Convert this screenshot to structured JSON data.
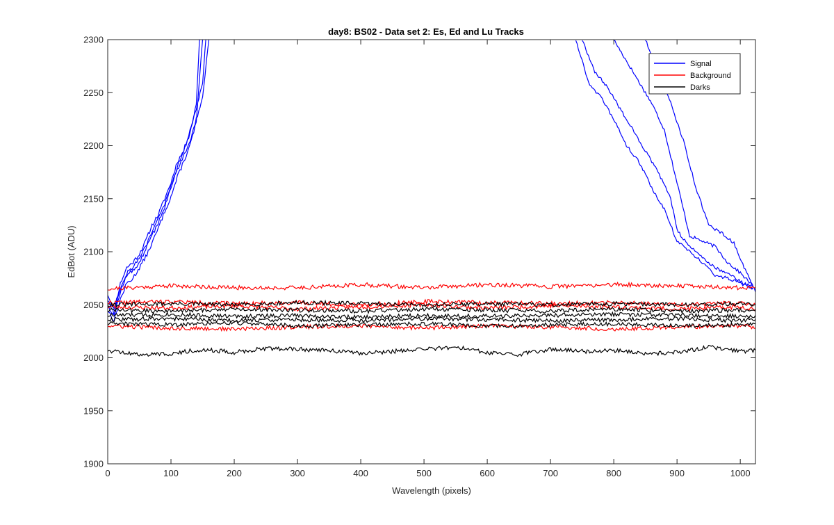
{
  "chart_data": {
    "type": "line",
    "title": "day8: BS02 - Data set 2: Es, Ed and Lu Tracks",
    "xlabel": "Wavelength (pixels)",
    "ylabel": "EdBot (ADU)",
    "xlim": [
      0,
      1024
    ],
    "ylim": [
      1900,
      2300
    ],
    "xticks": [
      0,
      100,
      200,
      300,
      400,
      500,
      600,
      700,
      800,
      900,
      1000
    ],
    "yticks": [
      1900,
      1950,
      2000,
      2050,
      2100,
      2150,
      2200,
      2250,
      2300
    ],
    "xtick_labels": [
      "0",
      "100",
      "200",
      "300",
      "400",
      "500",
      "600",
      "700",
      "800",
      "900",
      "1000"
    ],
    "ytick_labels": [
      "1900",
      "1950",
      "2000",
      "2050",
      "2100",
      "2150",
      "2200",
      "2250",
      "2300"
    ],
    "grid": false,
    "legend_position": "top-right",
    "legend": [
      {
        "name": "Signal",
        "color": "#0000ff"
      },
      {
        "name": "Background",
        "color": "#ff0000"
      },
      {
        "name": "Darks",
        "color": "#000000"
      }
    ],
    "series": [
      {
        "name": "Signal 1",
        "group": "Signal",
        "color": "#0000ff",
        "noise": 2,
        "seed": 11,
        "x": [
          0,
          10,
          20,
          30,
          40,
          50,
          60,
          70,
          80,
          90,
          100,
          110,
          120,
          130,
          140,
          150,
          155
        ],
        "y": [
          2060,
          2045,
          2070,
          2085,
          2090,
          2098,
          2110,
          2125,
          2135,
          2150,
          2165,
          2185,
          2195,
          2215,
          2235,
          2260,
          2300
        ]
      },
      {
        "name": "Signal 2",
        "group": "Signal",
        "color": "#0000ff",
        "noise": 2,
        "seed": 12,
        "x": [
          0,
          10,
          20,
          30,
          40,
          50,
          60,
          70,
          80,
          90,
          100,
          110,
          120,
          130,
          140,
          150,
          160
        ],
        "y": [
          2050,
          2040,
          2062,
          2078,
          2082,
          2090,
          2102,
          2115,
          2128,
          2142,
          2160,
          2178,
          2190,
          2205,
          2225,
          2245,
          2300
        ]
      },
      {
        "name": "Signal 3",
        "group": "Signal",
        "color": "#0000ff",
        "noise": 2,
        "seed": 13,
        "x": [
          0,
          10,
          20,
          30,
          40,
          50,
          60,
          70,
          80,
          90,
          100,
          110,
          120,
          130,
          140,
          150
        ],
        "y": [
          2045,
          2035,
          2055,
          2070,
          2075,
          2085,
          2095,
          2108,
          2122,
          2138,
          2152,
          2170,
          2185,
          2200,
          2222,
          2300
        ]
      },
      {
        "name": "Signal 4",
        "group": "Signal",
        "color": "#0000ff",
        "noise": 2,
        "seed": 14,
        "x": [
          0,
          10,
          20,
          30,
          40,
          50,
          60,
          70,
          80,
          90,
          100,
          110,
          120,
          130,
          140,
          145
        ],
        "y": [
          2055,
          2042,
          2066,
          2080,
          2086,
          2094,
          2105,
          2118,
          2132,
          2145,
          2162,
          2180,
          2195,
          2212,
          2240,
          2300
        ]
      },
      {
        "name": "Signal 5",
        "group": "Signal",
        "color": "#0000ff",
        "noise": 1.5,
        "seed": 15,
        "x": [
          740,
          760,
          780,
          800,
          820,
          840,
          860,
          880,
          900,
          920,
          940,
          960,
          980,
          1000,
          1020
        ],
        "y": [
          2300,
          2260,
          2245,
          2225,
          2200,
          2185,
          2160,
          2140,
          2110,
          2100,
          2090,
          2078,
          2075,
          2070,
          2065
        ]
      },
      {
        "name": "Signal 6",
        "group": "Signal",
        "color": "#0000ff",
        "noise": 1.5,
        "seed": 16,
        "x": [
          750,
          770,
          790,
          810,
          830,
          850,
          870,
          890,
          900,
          920,
          940,
          960,
          980,
          1000,
          1020
        ],
        "y": [
          2300,
          2270,
          2255,
          2235,
          2215,
          2195,
          2175,
          2150,
          2120,
          2105,
          2095,
          2085,
          2080,
          2072,
          2066
        ]
      },
      {
        "name": "Signal 7",
        "group": "Signal",
        "color": "#0000ff",
        "noise": 1.5,
        "seed": 17,
        "x": [
          800,
          820,
          840,
          860,
          880,
          900,
          920,
          940,
          960,
          980,
          1000,
          1020
        ],
        "y": [
          2300,
          2280,
          2260,
          2240,
          2215,
          2165,
          2115,
          2110,
          2105,
          2090,
          2080,
          2068
        ]
      },
      {
        "name": "Signal 8",
        "group": "Signal",
        "color": "#0000ff",
        "noise": 1.5,
        "seed": 18,
        "x": [
          850,
          870,
          890,
          910,
          930,
          950,
          970,
          990,
          1010,
          1024
        ],
        "y": [
          2300,
          2270,
          2240,
          2205,
          2160,
          2125,
          2118,
          2108,
          2080,
          2062
        ]
      },
      {
        "name": "Background 1",
        "group": "Background",
        "color": "#ff0000",
        "noise": 2,
        "seed": 21,
        "x": [
          0,
          100,
          200,
          300,
          400,
          500,
          600,
          700,
          800,
          900,
          1000,
          1024
        ],
        "y": [
          2065,
          2068,
          2066,
          2066,
          2069,
          2066,
          2069,
          2067,
          2069,
          2068,
          2066,
          2066
        ]
      },
      {
        "name": "Background 2",
        "group": "Background",
        "color": "#ff0000",
        "noise": 2,
        "seed": 22,
        "x": [
          0,
          100,
          200,
          300,
          400,
          500,
          600,
          700,
          800,
          900,
          1000,
          1024
        ],
        "y": [
          2052,
          2053,
          2051,
          2052,
          2050,
          2053,
          2052,
          2051,
          2052,
          2050,
          2052,
          2050
        ]
      },
      {
        "name": "Background 3",
        "group": "Background",
        "color": "#ff0000",
        "noise": 2,
        "seed": 23,
        "x": [
          0,
          100,
          200,
          300,
          400,
          500,
          600,
          700,
          800,
          900,
          1000,
          1024
        ],
        "y": [
          2048,
          2047,
          2049,
          2046,
          2048,
          2050,
          2047,
          2049,
          2048,
          2046,
          2048,
          2046
        ]
      },
      {
        "name": "Background 4",
        "group": "Background",
        "color": "#ff0000",
        "noise": 2,
        "seed": 24,
        "x": [
          0,
          100,
          200,
          300,
          400,
          500,
          600,
          700,
          800,
          900,
          1000,
          1024
        ],
        "y": [
          2030,
          2028,
          2027,
          2029,
          2030,
          2028,
          2030,
          2029,
          2027,
          2029,
          2030,
          2028
        ]
      },
      {
        "name": "Darks 1",
        "group": "Darks",
        "color": "#000000",
        "noise": 2,
        "seed": 31,
        "x": [
          0,
          100,
          200,
          300,
          400,
          500,
          600,
          700,
          800,
          900,
          1000,
          1024
        ],
        "y": [
          2050,
          2051,
          2050,
          2052,
          2051,
          2050,
          2051,
          2050,
          2051,
          2050,
          2051,
          2050
        ]
      },
      {
        "name": "Darks 2",
        "group": "Darks",
        "color": "#000000",
        "noise": 2,
        "seed": 32,
        "x": [
          0,
          100,
          200,
          300,
          400,
          500,
          600,
          700,
          800,
          900,
          1000,
          1024
        ],
        "y": [
          2045,
          2044,
          2046,
          2045,
          2044,
          2046,
          2045,
          2044,
          2046,
          2044,
          2045,
          2044
        ]
      },
      {
        "name": "Darks 3",
        "group": "Darks",
        "color": "#000000",
        "noise": 2,
        "seed": 33,
        "x": [
          0,
          100,
          200,
          300,
          400,
          500,
          600,
          700,
          800,
          900,
          1000,
          1024
        ],
        "y": [
          2040,
          2041,
          2039,
          2040,
          2038,
          2040,
          2039,
          2040,
          2041,
          2040,
          2039,
          2040
        ]
      },
      {
        "name": "Darks 4",
        "group": "Darks",
        "color": "#000000",
        "noise": 2,
        "seed": 34,
        "x": [
          0,
          100,
          200,
          300,
          400,
          500,
          600,
          700,
          800,
          900,
          1000,
          1024
        ],
        "y": [
          2036,
          2037,
          2035,
          2036,
          2035,
          2037,
          2036,
          2035,
          2036,
          2037,
          2035,
          2036
        ]
      },
      {
        "name": "Darks 5",
        "group": "Darks",
        "color": "#000000",
        "noise": 2,
        "seed": 35,
        "x": [
          0,
          100,
          200,
          300,
          400,
          500,
          600,
          700,
          800,
          900,
          1000,
          1024
        ],
        "y": [
          2032,
          2031,
          2033,
          2030,
          2031,
          2032,
          2030,
          2031,
          2032,
          2030,
          2031,
          2032
        ]
      },
      {
        "name": "Darks 6",
        "group": "Darks",
        "color": "#000000",
        "noise": 2,
        "seed": 36,
        "x": [
          0,
          50,
          100,
          150,
          200,
          250,
          300,
          350,
          400,
          450,
          500,
          550,
          600,
          650,
          700,
          750,
          800,
          850,
          900,
          950,
          1000,
          1024
        ],
        "y": [
          2007,
          2003,
          2004,
          2008,
          2005,
          2009,
          2008,
          2007,
          2004,
          2006,
          2008,
          2010,
          2005,
          2003,
          2008,
          2006,
          2007,
          2004,
          2005,
          2010,
          2006,
          2007
        ]
      }
    ]
  }
}
